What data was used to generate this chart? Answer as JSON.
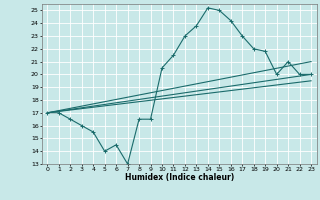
{
  "xlabel": "Humidex (Indice chaleur)",
  "bg_color": "#c8e8e8",
  "grid_color": "#ffffff",
  "line_color": "#1a6b6b",
  "xlim": [
    -0.5,
    23.5
  ],
  "ylim": [
    13,
    25.5
  ],
  "yticks": [
    13,
    14,
    15,
    16,
    17,
    18,
    19,
    20,
    21,
    22,
    23,
    24,
    25
  ],
  "xticks": [
    0,
    1,
    2,
    3,
    4,
    5,
    6,
    7,
    8,
    9,
    10,
    11,
    12,
    13,
    14,
    15,
    16,
    17,
    18,
    19,
    20,
    21,
    22,
    23
  ],
  "line1": {
    "x": [
      0,
      1,
      2,
      3,
      4,
      5,
      6,
      7,
      8,
      9,
      10,
      11,
      12,
      13,
      14,
      15,
      16,
      17,
      18,
      19,
      20,
      21,
      22,
      23
    ],
    "y": [
      17,
      17,
      16.5,
      16,
      15.5,
      14,
      14.5,
      13,
      16.5,
      16.5,
      20.5,
      21.5,
      23,
      23.8,
      25.2,
      25,
      24.2,
      23,
      22,
      21.8,
      20,
      21,
      20,
      20
    ]
  },
  "line2": {
    "x": [
      0,
      23
    ],
    "y": [
      17,
      20
    ]
  },
  "line3": {
    "x": [
      0,
      23
    ],
    "y": [
      17,
      21
    ]
  },
  "line4": {
    "x": [
      0,
      23
    ],
    "y": [
      17,
      19.5
    ]
  }
}
